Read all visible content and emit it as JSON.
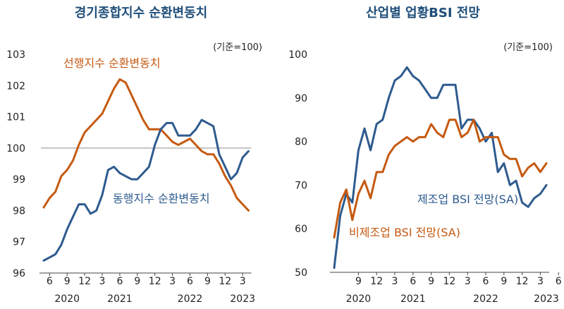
{
  "chart_data": [
    {
      "type": "line",
      "title": "경기종합지수 순환변동치",
      "unit": "(기준=100)",
      "ylim": [
        96,
        103
      ],
      "yticks": [
        96,
        97,
        98,
        99,
        100,
        101,
        102,
        103
      ],
      "reference_line": 100,
      "grid": false,
      "x_start": "2020-05",
      "x_tick_labels": [
        "6",
        "9",
        "12",
        "3",
        "6",
        "9",
        "12",
        "3",
        "6",
        "9",
        "12",
        "3"
      ],
      "x_year_labels": [
        "2020",
        "2021",
        "2022",
        "2023"
      ],
      "colors": {
        "leading": "#c55a11",
        "coincident": "#2e5b8e",
        "reference": "#a6a6a6"
      },
      "series": [
        {
          "name": "선행지수 순환변동치",
          "values": [
            98.1,
            98.4,
            98.6,
            99.1,
            99.3,
            99.6,
            100.1,
            100.5,
            100.7,
            100.9,
            101.1,
            101.5,
            101.9,
            102.2,
            102.1,
            101.7,
            101.3,
            100.9,
            100.6,
            100.6,
            100.6,
            100.4,
            100.2,
            100.1,
            100.2,
            100.3,
            100.1,
            99.9,
            99.8,
            99.8,
            99.5,
            99.1,
            98.8,
            98.4,
            98.2,
            98.0
          ]
        },
        {
          "name": "동행지수 순환변동치",
          "values": [
            96.4,
            96.5,
            96.6,
            96.9,
            97.4,
            97.8,
            98.2,
            98.2,
            97.9,
            98.0,
            98.5,
            99.3,
            99.4,
            99.2,
            99.1,
            99.0,
            99.0,
            99.2,
            99.4,
            100.1,
            100.6,
            100.8,
            100.8,
            100.4,
            100.4,
            100.4,
            100.6,
            100.9,
            100.8,
            100.7,
            99.8,
            99.4,
            99.0,
            99.2,
            99.7,
            99.9
          ]
        }
      ]
    },
    {
      "type": "line",
      "title": "산업별 업황BSI 전망",
      "unit": "(기준=100)",
      "ylim": [
        50,
        100
      ],
      "yticks": [
        50,
        60,
        70,
        80,
        90,
        100
      ],
      "grid": false,
      "x_start": "2020-05",
      "x_tick_labels": [
        "9",
        "12",
        "3",
        "6",
        "9",
        "12",
        "3",
        "6",
        "9",
        "12",
        "3",
        "6"
      ],
      "x_year_labels": [
        "2020",
        "2021",
        "2022",
        "2023"
      ],
      "colors": {
        "manufacturing": "#2e5b8e",
        "non_manufacturing": "#c55a11"
      },
      "series": [
        {
          "name": "제조업 BSI 전망(SA)",
          "values": [
            51,
            63,
            68,
            66,
            78,
            83,
            78,
            84,
            85,
            90,
            94,
            95,
            97,
            95,
            94,
            92,
            90,
            90,
            93,
            93,
            93,
            83,
            85,
            85,
            83,
            80,
            82,
            73,
            75,
            70,
            71,
            66,
            65,
            67,
            68,
            70
          ]
        },
        {
          "name": "비제조업 BSI 전망(SA)",
          "values": [
            58,
            66,
            69,
            62,
            68,
            71,
            67,
            73,
            73,
            77,
            79,
            80,
            81,
            80,
            81,
            81,
            84,
            82,
            81,
            85,
            85,
            81,
            82,
            85,
            80,
            81,
            81,
            81,
            77,
            76,
            76,
            72,
            74,
            75,
            73,
            75
          ]
        }
      ]
    }
  ]
}
